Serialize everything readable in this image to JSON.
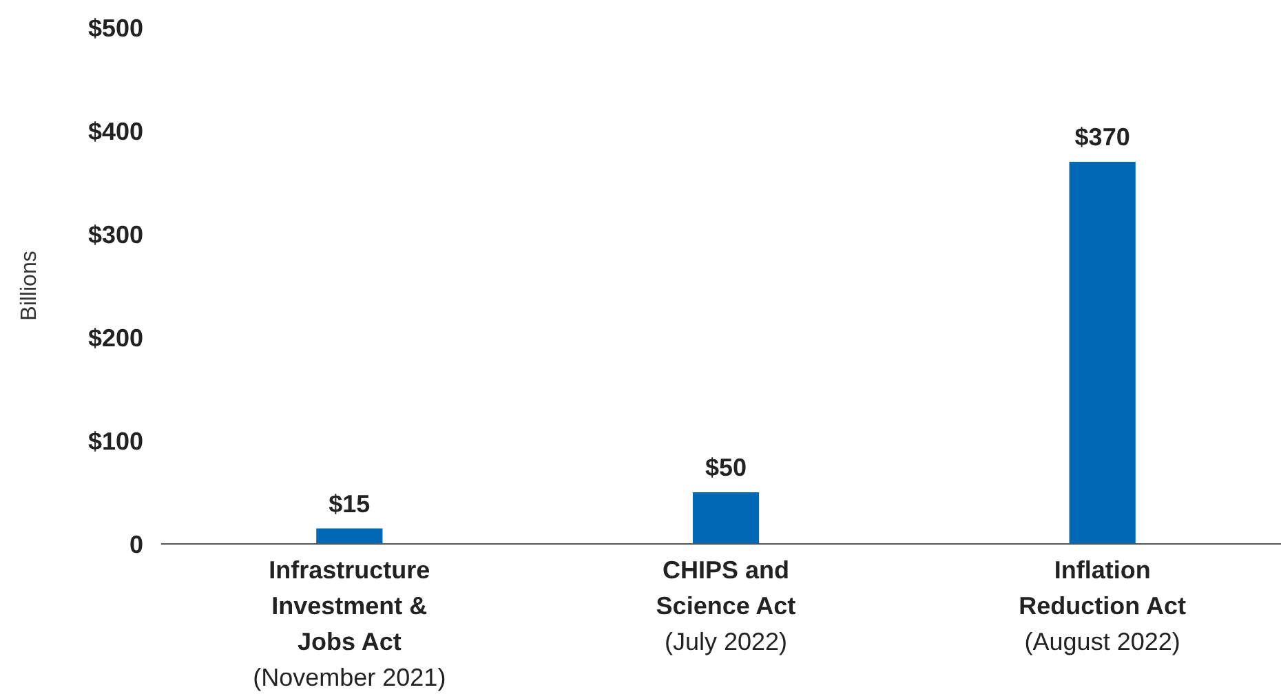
{
  "chart_data": {
    "type": "bar",
    "ylabel": "Billions",
    "categories": [
      "Infrastructure\nInvestment &\nJobs Act\n(November 2021)",
      "CHIPS and\nScience Act\n(July 2022)",
      "Inflation\nReduction Act\n(August 2022)"
    ],
    "values": [
      15,
      50,
      370
    ],
    "color": "#0068b5",
    "value_labels": [
      "$15",
      "$50",
      "$370"
    ],
    "ylim": [
      0,
      500
    ],
    "yticks": [
      0,
      {
        "value": 100,
        "label": "$100"
      },
      {
        "value": 200,
        "label": "$200"
      },
      {
        "value": 300,
        "label": "$300"
      },
      {
        "value": 400,
        "label": "$400"
      },
      {
        "value": 500,
        "label": "$500"
      }
    ],
    "grid": false
  }
}
